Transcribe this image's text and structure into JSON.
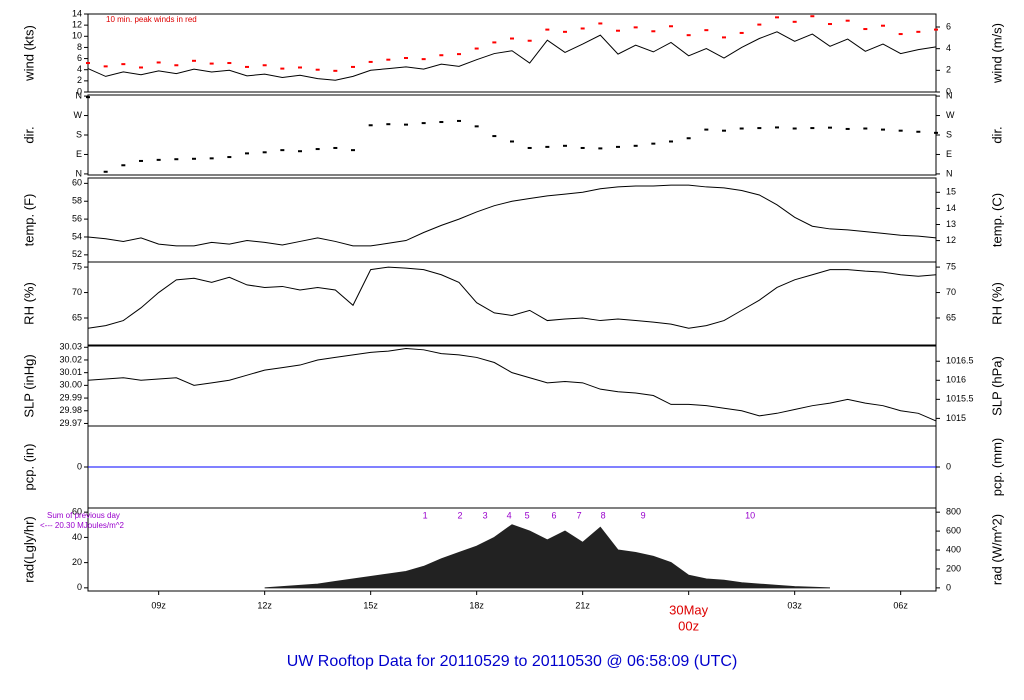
{
  "title": "UW Rooftop Data for 20110529  to  20110530 @ 06:58:09  (UTC)",
  "title_color": "#0000cc",
  "x_axis": {
    "xlim": [
      7,
      31
    ],
    "xticks": [
      {
        "value": 9,
        "label": "09z"
      },
      {
        "value": 12,
        "label": "12z"
      },
      {
        "value": 15,
        "label": "15z"
      },
      {
        "value": 18,
        "label": "18z"
      },
      {
        "value": 21,
        "label": "21z"
      },
      {
        "value": 24,
        "label": "00z"
      },
      {
        "value": 27,
        "label": "03z"
      },
      {
        "value": 30,
        "label": "06z"
      }
    ],
    "date_marker": {
      "x": 24,
      "label": "30May",
      "color": "#dd0000"
    }
  },
  "chart_data": [
    {
      "type": "line",
      "ylabel": "wind (kts)",
      "y2label": "wind (m/s)",
      "ylim": [
        0,
        14
      ],
      "yticks": [
        0,
        2,
        4,
        6,
        8,
        10,
        12,
        14
      ],
      "y2lim": [
        0,
        7.2
      ],
      "y2ticks": [
        0,
        2,
        4,
        6
      ],
      "annotation": "10 min. peak winds in red",
      "annotation_color": "#dd0000",
      "x": [
        7,
        7.5,
        8,
        8.5,
        9,
        9.5,
        10,
        10.5,
        11,
        11.5,
        12,
        12.5,
        13,
        13.5,
        14,
        14.5,
        15,
        15.5,
        16,
        16.5,
        17,
        17.5,
        18,
        18.5,
        19,
        19.5,
        20,
        20.5,
        21,
        21.5,
        22,
        22.5,
        23,
        23.5,
        24,
        24.5,
        25,
        25.5,
        26,
        26.5,
        27,
        27.5,
        28,
        28.5,
        29,
        29.5,
        30,
        30.5,
        31
      ],
      "series": [
        {
          "color": "#000000",
          "values": [
            4.2,
            2.8,
            3.6,
            3.1,
            3.8,
            3.3,
            4.1,
            3.6,
            3.9,
            2.9,
            3.2,
            2.6,
            3.0,
            2.4,
            2.1,
            2.8,
            3.9,
            4.2,
            4.5,
            4.1,
            5.0,
            4.6,
            5.8,
            6.9,
            7.4,
            5.2,
            9.3,
            7.1,
            8.6,
            10.2,
            6.8,
            8.4,
            7.2,
            8.9,
            6.5,
            7.8,
            6.1,
            8.0,
            9.6,
            10.8,
            9.1,
            10.4,
            8.2,
            9.5,
            7.3,
            8.6,
            6.9,
            7.6,
            8.1
          ]
        },
        {
          "color": "#ff0000",
          "style": "dots",
          "values": [
            5.2,
            4.6,
            5.0,
            4.4,
            5.3,
            4.8,
            5.6,
            5.1,
            5.2,
            4.5,
            4.8,
            4.2,
            4.4,
            4.0,
            3.8,
            4.5,
            5.4,
            5.8,
            6.1,
            5.9,
            6.6,
            6.8,
            7.8,
            8.9,
            9.6,
            9.2,
            11.2,
            10.8,
            11.4,
            12.3,
            11.0,
            11.6,
            10.9,
            11.8,
            10.2,
            11.1,
            9.8,
            10.6,
            12.1,
            13.4,
            12.6,
            13.6,
            12.2,
            12.8,
            11.3,
            11.9,
            10.4,
            10.8,
            11.2
          ]
        }
      ]
    },
    {
      "type": "scatter",
      "ylabel": "dir.",
      "y2label": "dir.",
      "ylim": [
        -5,
        365
      ],
      "yticks": [
        {
          "value": 360,
          "label": "N"
        },
        {
          "value": 270,
          "label": "W"
        },
        {
          "value": 180,
          "label": "S"
        },
        {
          "value": 90,
          "label": "E"
        },
        {
          "value": 0,
          "label": "N"
        }
      ],
      "y2lim": [
        -5,
        365
      ],
      "y2ticks": [
        {
          "value": 360,
          "label": "N"
        },
        {
          "value": 270,
          "label": "W"
        },
        {
          "value": 180,
          "label": "S"
        },
        {
          "value": 90,
          "label": "E"
        },
        {
          "value": 0,
          "label": "N"
        }
      ],
      "x": [
        7,
        7.5,
        8,
        8.5,
        9,
        9.5,
        10,
        10.5,
        11,
        11.5,
        12,
        12.5,
        13,
        13.5,
        14,
        14.5,
        15,
        15.5,
        16,
        16.5,
        17,
        17.5,
        18,
        18.5,
        19,
        19.5,
        20,
        20.5,
        21,
        21.5,
        22,
        22.5,
        23,
        23.5,
        24,
        24.5,
        25,
        25.5,
        26,
        26.5,
        27,
        27.5,
        28,
        28.5,
        29,
        29.5,
        30,
        30.5,
        31
      ],
      "series": [
        {
          "color": "#000000",
          "values": [
            355,
            10,
            40,
            60,
            65,
            68,
            70,
            72,
            78,
            95,
            100,
            110,
            105,
            115,
            120,
            110,
            225,
            230,
            228,
            235,
            240,
            245,
            220,
            175,
            150,
            120,
            125,
            130,
            120,
            118,
            125,
            130,
            140,
            150,
            165,
            205,
            200,
            210,
            212,
            215,
            210,
            212,
            214,
            208,
            210,
            205,
            200,
            195,
            190
          ]
        }
      ]
    },
    {
      "type": "line",
      "ylabel": "temp. (F)",
      "y2label": "temp. (C)",
      "ylim": [
        51.2,
        60.6
      ],
      "yticks": [
        52,
        54,
        56,
        58,
        60
      ],
      "y2lim": [
        10.67,
        15.89
      ],
      "y2ticks": [
        12,
        13,
        14,
        15
      ],
      "x": [
        7,
        7.5,
        8,
        8.5,
        9,
        9.5,
        10,
        10.5,
        11,
        11.5,
        12,
        12.5,
        13,
        13.5,
        14,
        14.5,
        15,
        15.5,
        16,
        16.5,
        17,
        17.5,
        18,
        18.5,
        19,
        19.5,
        20,
        20.5,
        21,
        21.5,
        22,
        22.5,
        23,
        23.5,
        24,
        24.5,
        25,
        25.5,
        26,
        26.5,
        27,
        27.5,
        28,
        28.5,
        29,
        29.5,
        30,
        30.5,
        31
      ],
      "series": [
        {
          "color": "#000000",
          "values": [
            54.0,
            53.8,
            53.5,
            53.9,
            53.2,
            53.0,
            53.0,
            53.4,
            53.2,
            53.6,
            53.4,
            53.1,
            53.5,
            53.9,
            53.5,
            53.0,
            53.0,
            53.3,
            53.6,
            54.5,
            55.3,
            56.0,
            56.8,
            57.5,
            58.0,
            58.3,
            58.6,
            58.8,
            59.0,
            59.4,
            59.6,
            59.7,
            59.7,
            59.8,
            59.8,
            59.6,
            59.5,
            59.2,
            58.7,
            57.6,
            56.2,
            55.2,
            54.9,
            54.8,
            54.6,
            54.4,
            54.2,
            54.1,
            53.9
          ]
        }
      ]
    },
    {
      "type": "line",
      "ylabel": "RH (%)",
      "y2label": "RH (%)",
      "ylim": [
        59.7,
        76
      ],
      "yticks": [
        65,
        70,
        75
      ],
      "y2lim": [
        59.7,
        76
      ],
      "y2ticks": [
        65,
        70,
        75
      ],
      "x": [
        7,
        7.5,
        8,
        8.5,
        9,
        9.5,
        10,
        10.5,
        11,
        11.5,
        12,
        12.5,
        13,
        13.5,
        14,
        14.5,
        15,
        15.5,
        16,
        16.5,
        17,
        17.5,
        18,
        18.5,
        19,
        19.5,
        20,
        20.5,
        21,
        21.5,
        22,
        22.5,
        23,
        23.5,
        24,
        24.5,
        25,
        25.5,
        26,
        26.5,
        27,
        27.5,
        28,
        28.5,
        29,
        29.5,
        30,
        30.5,
        31
      ],
      "series": [
        {
          "color": "#000000",
          "values": [
            63,
            63.5,
            64.5,
            67,
            70,
            72.5,
            72.8,
            72,
            73,
            71.5,
            71,
            71.2,
            70.5,
            71,
            70.5,
            67.5,
            74.5,
            75,
            74.8,
            74.5,
            73.5,
            72,
            68,
            66,
            65.5,
            66.5,
            64.5,
            64.8,
            65,
            64.5,
            64.8,
            64.5,
            64.2,
            63.8,
            63,
            63.5,
            64.5,
            66.5,
            68.5,
            71,
            72.5,
            73.5,
            74.5,
            74.5,
            74.2,
            74,
            73.5,
            73.2,
            73.5
          ]
        }
      ]
    },
    {
      "type": "line",
      "ylabel": "SLP (inHg)",
      "y2label": "SLP (hPa)",
      "ylim": [
        29.968,
        30.031
      ],
      "yticks": [
        {
          "value": 29.97,
          "label": "29.97"
        },
        {
          "value": 29.98,
          "label": "29.98"
        },
        {
          "value": 29.99,
          "label": "29.99"
        },
        {
          "value": 30,
          "label": "30.00"
        },
        {
          "value": 30.01,
          "label": "30.01"
        },
        {
          "value": 30.02,
          "label": "30.02"
        },
        {
          "value": 30.03,
          "label": "30.03"
        }
      ],
      "y2lim": [
        1014.8,
        1016.9
      ],
      "y2ticks": [
        1015,
        1015.5,
        1016,
        1016.5
      ],
      "x": [
        7,
        7.5,
        8,
        8.5,
        9,
        9.5,
        10,
        10.5,
        11,
        11.5,
        12,
        12.5,
        13,
        13.5,
        14,
        14.5,
        15,
        15.5,
        16,
        16.5,
        17,
        17.5,
        18,
        18.5,
        19,
        19.5,
        20,
        20.5,
        21,
        21.5,
        22,
        22.5,
        23,
        23.5,
        24,
        24.5,
        25,
        25.5,
        26,
        26.5,
        27,
        27.5,
        28,
        28.5,
        29,
        29.5,
        30,
        30.5,
        31
      ],
      "series": [
        {
          "color": "#000000",
          "values": [
            30.004,
            30.005,
            30.006,
            30.004,
            30.005,
            30.006,
            30,
            30.002,
            30.004,
            30.008,
            30.012,
            30.014,
            30.016,
            30.02,
            30.022,
            30.024,
            30.026,
            30.027,
            30.029,
            30.028,
            30.025,
            30.024,
            30.022,
            30.018,
            30.01,
            30.006,
            30.002,
            30.003,
            30.002,
            29.997,
            29.995,
            29.994,
            29.992,
            29.985,
            29.985,
            29.984,
            29.982,
            29.98,
            29.976,
            29.978,
            29.981,
            29.984,
            29.986,
            29.989,
            29.986,
            29.984,
            29.98,
            29.978,
            29.972
          ]
        }
      ]
    },
    {
      "type": "line",
      "ylabel": "pcp. (in)",
      "y2label": "pcp. (mm)",
      "ylim": [
        -1,
        1
      ],
      "yticks": [
        0
      ],
      "y2lim": [
        -1,
        1
      ],
      "y2ticks": [
        0
      ],
      "x": [
        7,
        31
      ],
      "series": [
        {
          "color": "#0000ff",
          "values": [
            0,
            0
          ]
        }
      ]
    },
    {
      "type": "area",
      "ylabel": "rad(Lgly/hr)",
      "y2label": "rad (W/m^2)",
      "ylim": [
        -2.5,
        63.3
      ],
      "yticks": [
        0,
        20,
        40,
        60
      ],
      "y2lim": [
        -33,
        844
      ],
      "y2ticks": [
        0,
        200,
        400,
        600,
        800
      ],
      "annotations": [
        "Sum of previous day",
        "<--- 20.30 MJoules/m^2"
      ],
      "annotation_color": "#9900cc",
      "hour_markers": {
        "x": [
          16.54,
          17.53,
          18.24,
          18.92,
          19.43,
          20.19,
          20.9,
          21.58,
          22.71,
          25.74
        ],
        "labels": [
          "1",
          "2",
          "3",
          "4",
          "5",
          "6",
          "7",
          "8",
          "9",
          "10"
        ]
      },
      "x": [
        7,
        7.5,
        8,
        8.5,
        9,
        9.5,
        10,
        10.5,
        11,
        11.5,
        12,
        12.5,
        13,
        13.5,
        14,
        14.5,
        15,
        15.5,
        16,
        16.5,
        17,
        17.5,
        18,
        18.5,
        19,
        19.5,
        20,
        20.5,
        21,
        21.5,
        22,
        22.5,
        23,
        23.5,
        24,
        24.5,
        25,
        25.5,
        26,
        26.5,
        27,
        27.5,
        28,
        28.5,
        29,
        29.5,
        30,
        30.5,
        31
      ],
      "series": [
        {
          "color": "#222222",
          "values": [
            null,
            null,
            null,
            null,
            null,
            null,
            null,
            null,
            null,
            null,
            0,
            1,
            2,
            3,
            5,
            7,
            9,
            11,
            13,
            17,
            23,
            28,
            33,
            40,
            50,
            45,
            38,
            45,
            36,
            48,
            30,
            28,
            25,
            20,
            10,
            7,
            6,
            4,
            3,
            2,
            1,
            0.5,
            0,
            null,
            null,
            null,
            null,
            null,
            null
          ]
        }
      ]
    }
  ]
}
